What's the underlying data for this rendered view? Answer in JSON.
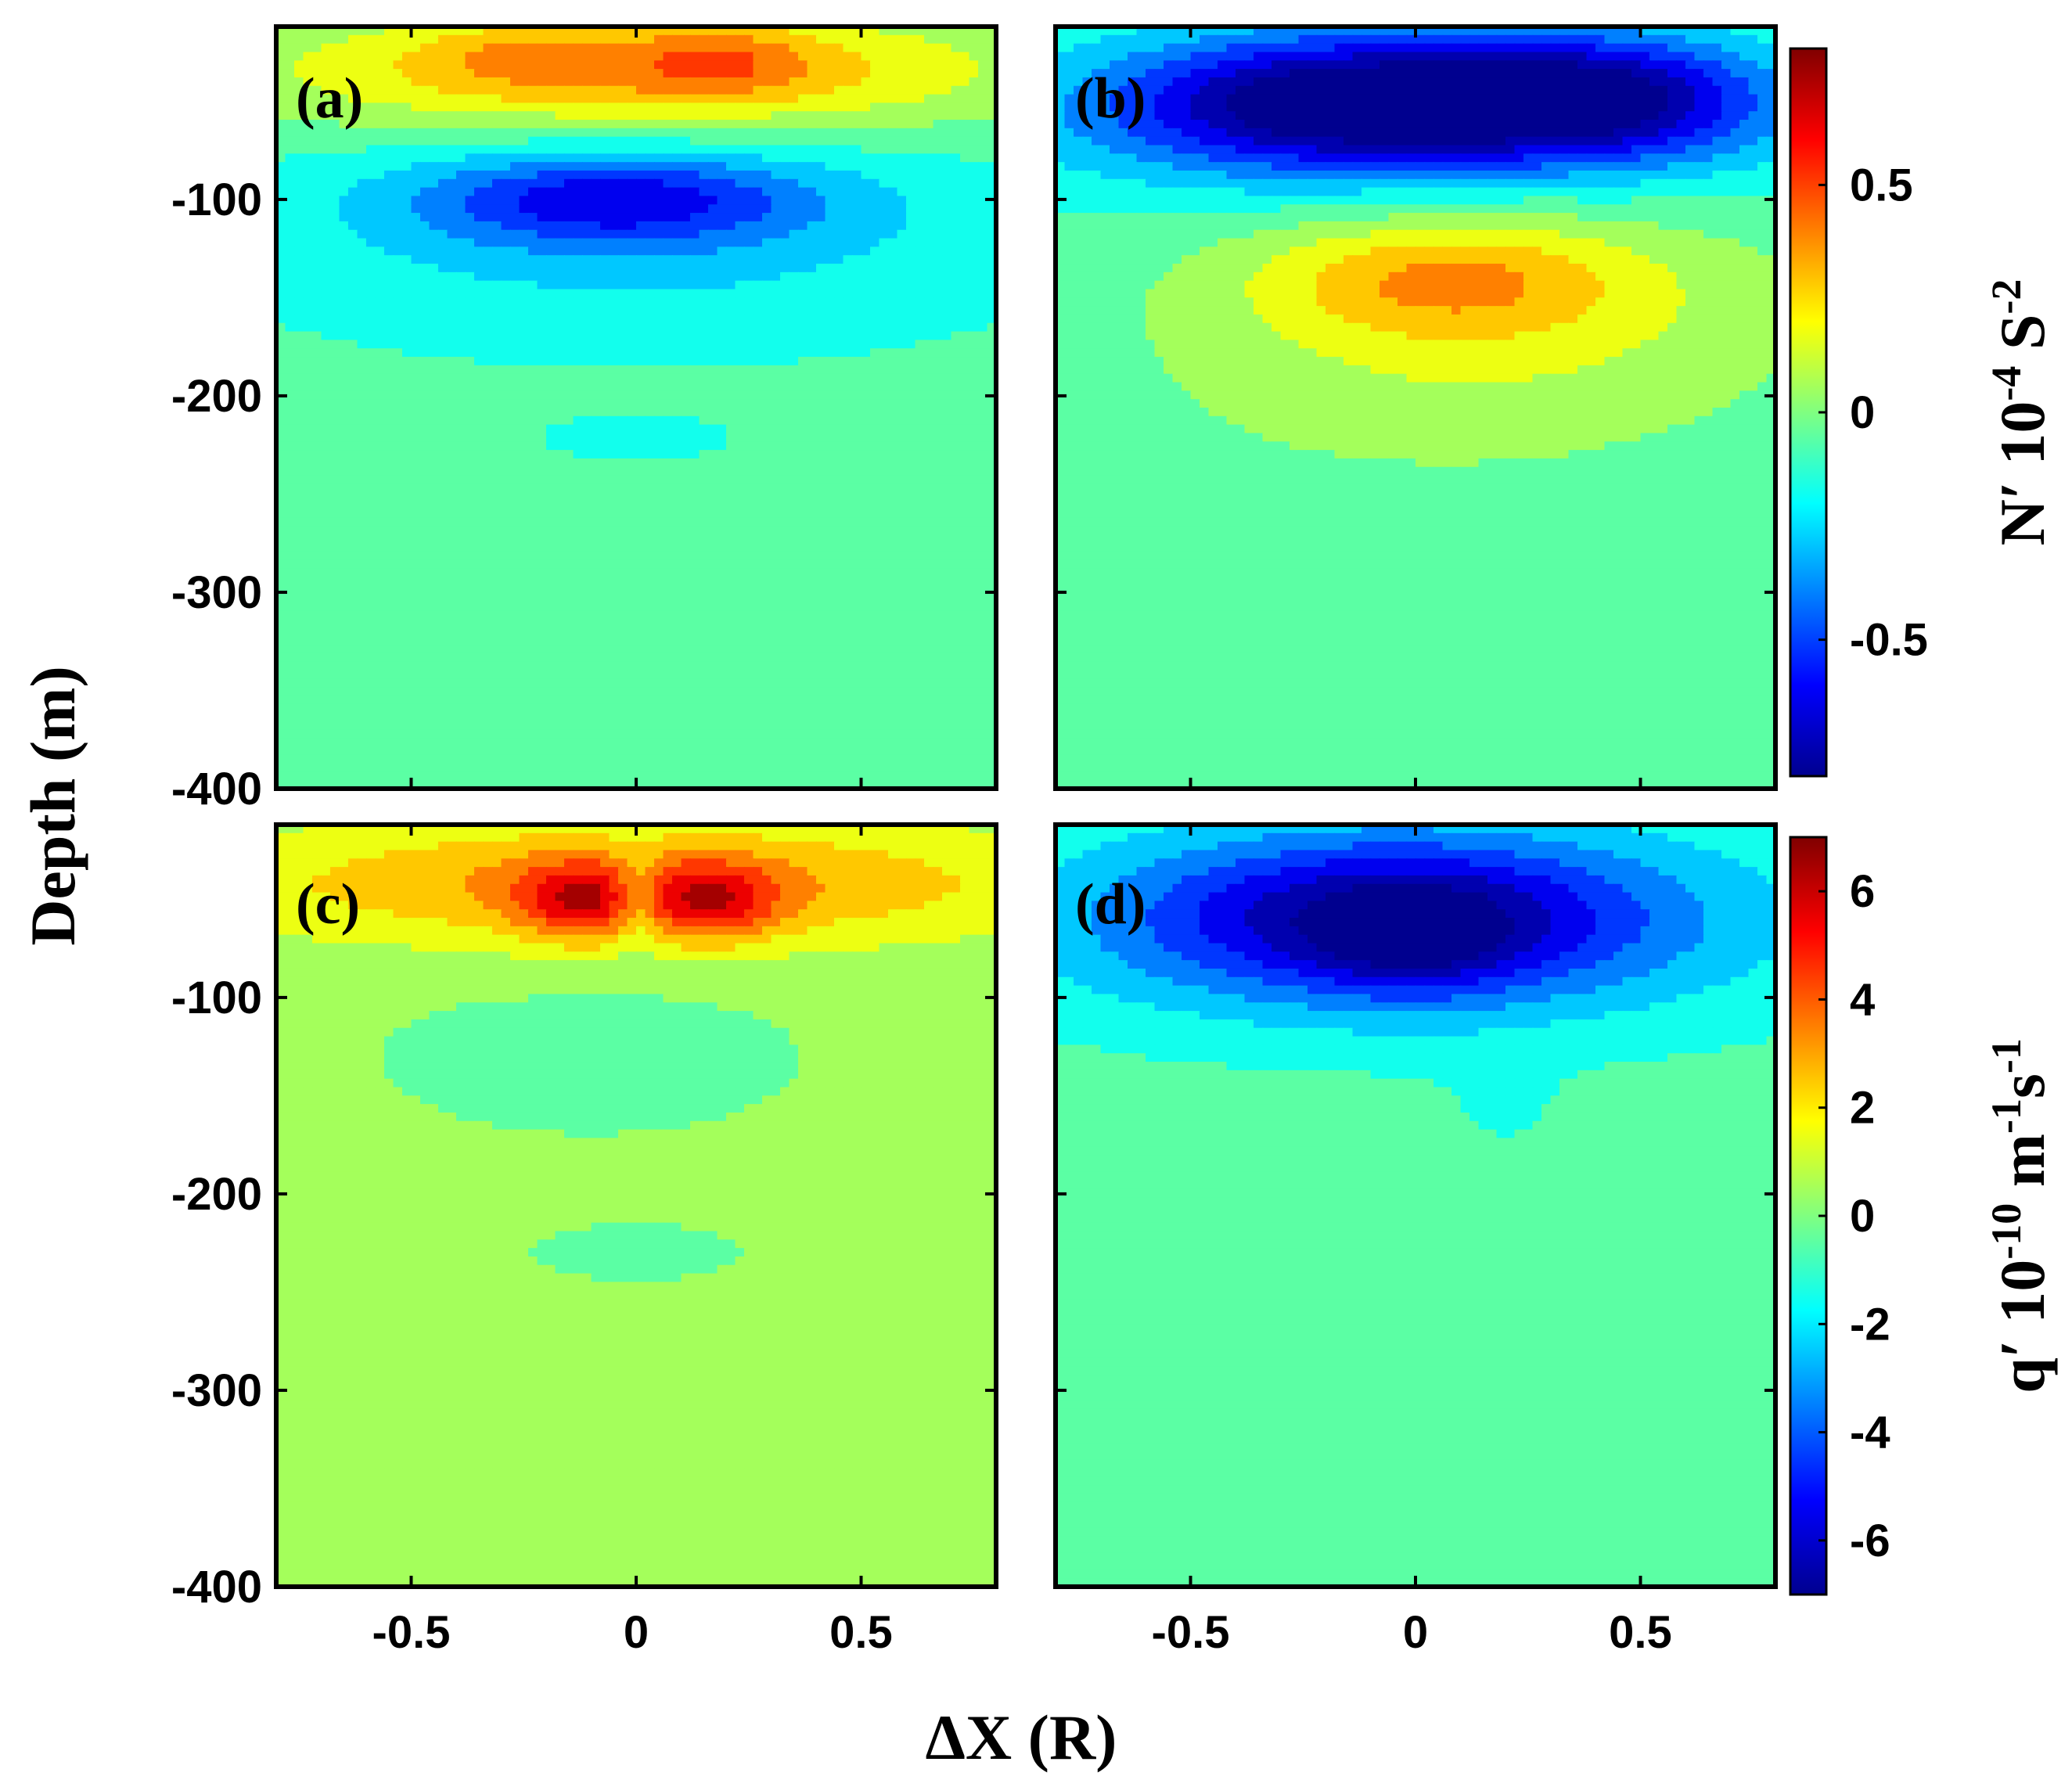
{
  "chart_data": {
    "type": "heatmap",
    "shared_axes": {
      "xlabel": "ΔX (R)",
      "ylabel": "Depth (m)",
      "xlim": [
        -0.8,
        0.8
      ],
      "ylim": [
        -400,
        -12
      ],
      "xticks": [
        -0.5,
        0,
        0.5
      ],
      "xtick_labels": [
        "-0.5",
        "0",
        "0.5"
      ],
      "yticks": [
        -100,
        -200,
        -300,
        -400
      ],
      "ytick_labels": [
        "-100",
        "-200",
        "-300",
        "-400"
      ]
    },
    "colorbars": [
      {
        "variable": "N′",
        "label": "N′  10",
        "label_exponent": "-4",
        "label_unit": " S",
        "label_unit_exponent": "-2",
        "range": [
          -0.8,
          0.8
        ],
        "ticks": [
          0.5,
          0,
          -0.5
        ],
        "tick_labels": [
          "0.5",
          "0",
          "-0.5"
        ],
        "applies_to": [
          "a",
          "b"
        ]
      },
      {
        "variable": "q′",
        "label": "q′  10",
        "label_exponent": "-10",
        "label_unit": " m",
        "label_unit_exponent": "-1",
        "label_unit2": "s",
        "label_unit2_exponent": "-1",
        "range": [
          -7,
          7
        ],
        "ticks": [
          6,
          4,
          2,
          0,
          -2,
          -4,
          -6
        ],
        "tick_labels": [
          "6",
          "4",
          "2",
          "0",
          "-2",
          "-4",
          "-6"
        ],
        "applies_to": [
          "c",
          "d"
        ]
      }
    ],
    "panels": [
      {
        "label": "(a)",
        "variable": "N′",
        "background": -0.08,
        "features": [
          {
            "x": 0.0,
            "depth": -35,
            "sx": 0.6,
            "sd": 22,
            "amp": 0.46
          },
          {
            "x": 0.18,
            "depth": -28,
            "sx": 0.14,
            "sd": 14,
            "amp": 0.18
          },
          {
            "x": -0.3,
            "depth": -25,
            "sx": 0.12,
            "sd": 12,
            "amp": 0.1
          },
          {
            "x": -0.05,
            "depth": -100,
            "sx": 0.3,
            "sd": 16,
            "amp": -0.42
          },
          {
            "x": 0.0,
            "depth": -115,
            "sx": 0.58,
            "sd": 38,
            "amp": -0.2
          },
          {
            "x": 0.0,
            "depth": -222,
            "sx": 0.18,
            "sd": 10,
            "amp": -0.06
          }
        ]
      },
      {
        "label": "(b)",
        "variable": "N′",
        "background": -0.08,
        "features": [
          {
            "x": -0.15,
            "depth": -50,
            "sx": 0.35,
            "sd": 24,
            "amp": -0.7
          },
          {
            "x": 0.42,
            "depth": -48,
            "sx": 0.25,
            "sd": 22,
            "amp": -0.55
          },
          {
            "x": 0.0,
            "depth": -60,
            "sx": 0.7,
            "sd": 30,
            "amp": -0.25
          },
          {
            "x": 0.05,
            "depth": -140,
            "sx": 0.28,
            "sd": 20,
            "amp": 0.26
          },
          {
            "x": 0.2,
            "depth": -150,
            "sx": 0.45,
            "sd": 40,
            "amp": 0.2
          },
          {
            "x": 0.0,
            "depth": -200,
            "sx": 0.55,
            "sd": 45,
            "amp": 0.08
          }
        ]
      },
      {
        "label": "(c)",
        "variable": "q′",
        "background": 0.25,
        "features": [
          {
            "x": 0.0,
            "depth": -42,
            "sx": 0.65,
            "sd": 22,
            "amp": 3.2
          },
          {
            "x": -0.12,
            "depth": -52,
            "sx": 0.1,
            "sd": 14,
            "amp": 3.3
          },
          {
            "x": 0.17,
            "depth": -52,
            "sx": 0.1,
            "sd": 14,
            "amp": 3.3
          },
          {
            "x": 0.0,
            "depth": -50,
            "sx": 0.04,
            "sd": 18,
            "amp": -2.2
          },
          {
            "x": -0.1,
            "depth": -130,
            "sx": 0.35,
            "sd": 30,
            "amp": -0.6
          },
          {
            "x": 0.0,
            "depth": -230,
            "sx": 0.16,
            "sd": 10,
            "amp": -0.7
          }
        ]
      },
      {
        "label": "(d)",
        "variable": "q′",
        "background": -0.45,
        "features": [
          {
            "x": -0.05,
            "depth": -60,
            "sx": 0.4,
            "sd": 28,
            "amp": -5.2
          },
          {
            "x": 0.0,
            "depth": -72,
            "sx": 0.14,
            "sd": 18,
            "amp": -1.8
          },
          {
            "x": 0.0,
            "depth": -60,
            "sx": 0.78,
            "sd": 46,
            "amp": -2.0
          },
          {
            "x": 0.2,
            "depth": -160,
            "sx": 0.1,
            "sd": 20,
            "amp": -0.5
          }
        ]
      }
    ]
  }
}
